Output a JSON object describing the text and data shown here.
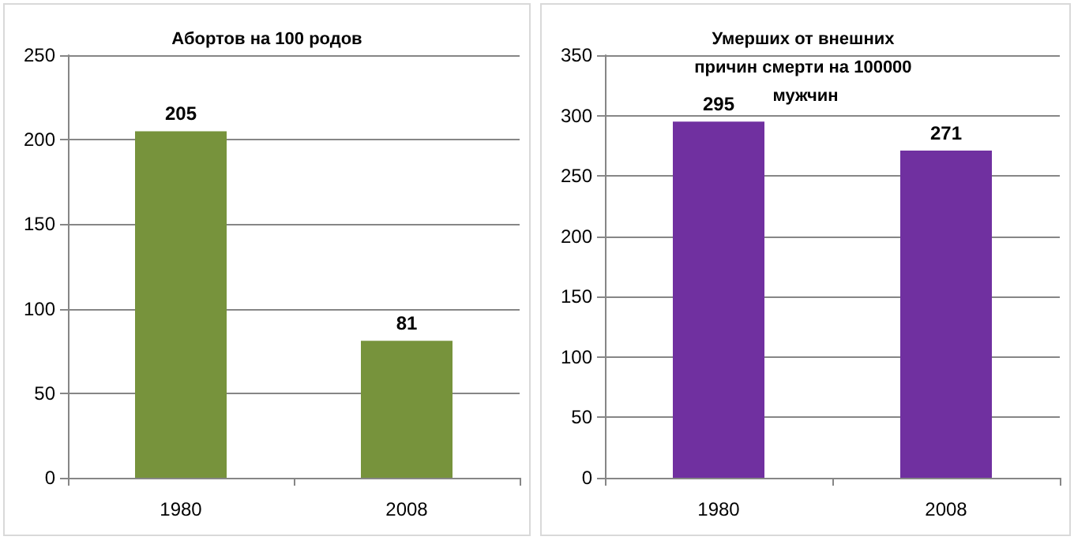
{
  "chart_data": [
    {
      "type": "bar",
      "title": "Абортов на 100 родов",
      "categories": [
        "1980",
        "2008"
      ],
      "values": [
        205,
        81
      ],
      "color": "#77933c",
      "ylim": [
        0,
        250
      ],
      "yticks": [
        0,
        50,
        100,
        150,
        200,
        250
      ],
      "grid": "y",
      "data_labels": true
    },
    {
      "type": "bar",
      "title": "Умерших от внешних причин смерти на 100000 мужчин",
      "categories": [
        "1980",
        "2008"
      ],
      "values": [
        295,
        271
      ],
      "color": "#7030a0",
      "ylim": [
        0,
        350
      ],
      "yticks": [
        0,
        50,
        100,
        150,
        200,
        250,
        300,
        350
      ],
      "grid": "y",
      "data_labels": true
    }
  ]
}
